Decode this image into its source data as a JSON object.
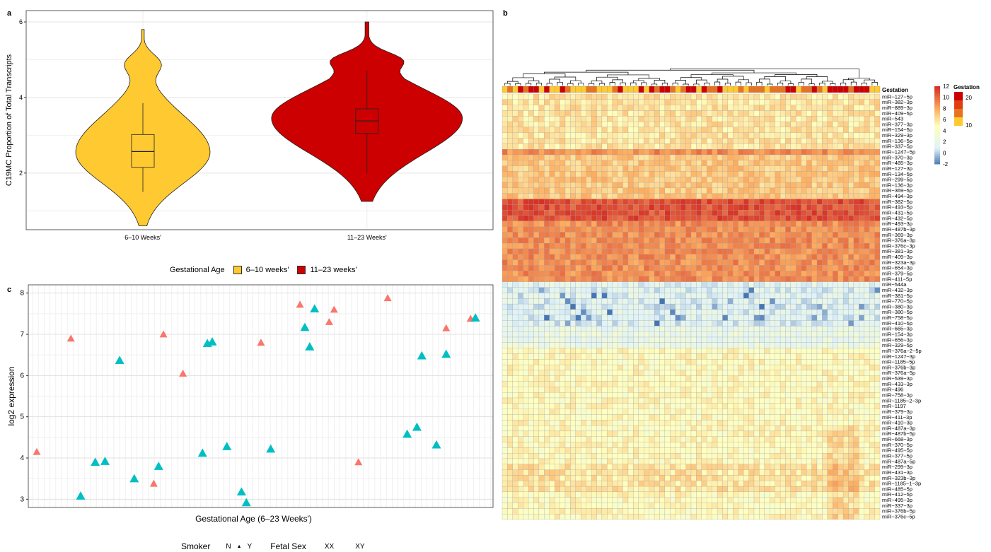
{
  "panels": {
    "a": "a",
    "b": "b",
    "c": "c"
  },
  "colors": {
    "group1": "#FFC931",
    "group2": "#CC0000",
    "smoker_n": "#F8766D",
    "smoker_y": "#00BFC4",
    "heat_low": "#4575B4",
    "heat_mid": "#FFFFBF",
    "heat_high": "#D73027"
  },
  "chart_data": [
    {
      "type": "violin",
      "ylabel": "C19MC Proportion of Total Transcripts",
      "categories": [
        "6–10 Weeks'",
        "11–23 Weeks'"
      ],
      "ylim": [
        0.5,
        6.3
      ],
      "yticks": [
        2,
        4,
        6
      ],
      "groups": [
        {
          "name": "6–10 Weeks'",
          "min": 1.5,
          "q1": 2.15,
          "median": 2.57,
          "q3": 3.02,
          "max": 3.85,
          "range": [
            0.6,
            5.8
          ]
        },
        {
          "name": "11–23 Weeks'",
          "min": 2.0,
          "q1": 3.05,
          "median": 3.38,
          "q3": 3.7,
          "max": 4.7,
          "range": [
            1.25,
            6.0
          ]
        }
      ],
      "legend": {
        "title": "Gestational Age",
        "entries": [
          "6–10 weeks'",
          "11–23 weeks'"
        ]
      }
    },
    {
      "type": "heatmap",
      "annotation_label": "Gestation",
      "scale_ticks": [
        12,
        10,
        8,
        6,
        4,
        2,
        0,
        -2
      ],
      "gestation_ticks": [
        20,
        10
      ],
      "gestation_title": "Gestation",
      "rows": [
        "miR−127−5p",
        "miR−382−3p",
        "miR−889−3p",
        "miR−409−5p",
        "miR−543",
        "miR−377−3p",
        "miR−154−5p",
        "miR−329−3p",
        "miR−136−5p",
        "miR−337−5p",
        "miR−1247−5p",
        "miR−370−3p",
        "miR−485−3p",
        "miR−127−3p",
        "miR−134−5p",
        "miR−299−5p",
        "miR−136−3p",
        "miR−369−5p",
        "miR−494−3p",
        "miR−382−5p",
        "miR−493−5p",
        "miR−431−5p",
        "miR−432−5p",
        "miR−493−3p",
        "miR−487b−3p",
        "miR−369−3p",
        "miR−376a−3p",
        "miR−376c−3p",
        "miR−381−3p",
        "miR−409−3p",
        "miR−323a−3p",
        "miR−654−3p",
        "miR−379−5p",
        "miR−411−5p",
        "miR−544a",
        "miR−432−3p",
        "miR−381−5p",
        "miR−770−5p",
        "miR−380−3p",
        "miR−380−5p",
        "miR−758−5p",
        "miR−410−5p",
        "miR−665−3p",
        "miR−154−3p",
        "miR−656−3p",
        "miR−329−5p",
        "miR−376a−2−5p",
        "miR−1247−3p",
        "miR−1185−5p",
        "miR−376b−3p",
        "miR−376a−5p",
        "miR−539−3p",
        "miR−433−3p",
        "miR−496",
        "miR−758−3p",
        "miR−1185−2−3p",
        "miR−1197",
        "miR−379−3p",
        "miR−411−3p",
        "miR−410−3p",
        "miR−487a−3p",
        "miR−487b−5p",
        "miR−668−3p",
        "miR−370−5p",
        "miR−495−5p",
        "miR−377−5p",
        "miR−487a−5p",
        "miR−299−3p",
        "miR−431−3p",
        "miR−323b−3p",
        "miR−1185−1−3p",
        "miR−485−5p",
        "miR−412−5p",
        "miR−495−3p",
        "miR−337−3p",
        "miR−376b−5p",
        "miR−376c−5p"
      ],
      "row_levels": [
        6,
        6,
        6,
        6,
        6,
        6,
        6,
        6,
        6,
        6,
        9,
        7,
        7,
        7,
        7,
        7,
        7,
        7,
        7,
        11,
        11,
        11,
        11,
        9,
        9,
        9,
        9,
        9,
        9,
        9,
        9,
        9,
        9,
        9,
        1.5,
        1.2,
        1.5,
        1.2,
        1,
        1.3,
        1.2,
        1,
        2,
        2.5,
        2,
        2.5,
        5,
        5,
        5,
        5,
        5,
        5,
        5,
        5,
        5,
        5,
        5,
        5,
        5,
        5,
        5,
        5,
        5,
        5,
        5,
        5,
        5,
        6,
        6,
        6,
        6,
        6,
        5,
        5,
        5,
        5,
        5
      ],
      "n_columns": 72
    },
    {
      "type": "scatter",
      "xlabel": "Gestational Age (6–23 Weeks')",
      "ylabel": "log2 expression",
      "ylim": [
        2.8,
        8.2
      ],
      "yticks": [
        3,
        4,
        5,
        6,
        7,
        8
      ],
      "series": [
        {
          "name": "N",
          "points": [
            [
              1,
              4.15
            ],
            [
              4.5,
              6.9
            ],
            [
              13,
              3.38
            ],
            [
              14,
              7.0
            ],
            [
              16,
              6.05
            ],
            [
              24,
              6.8
            ],
            [
              28,
              7.72
            ],
            [
              31,
              7.3
            ],
            [
              31.5,
              7.6
            ],
            [
              34,
              3.9
            ],
            [
              37,
              7.88
            ],
            [
              43,
              7.15
            ],
            [
              45.5,
              7.38
            ]
          ]
        },
        {
          "name": "Y",
          "points": [
            [
              5.5,
              3.08
            ],
            [
              7,
              3.9
            ],
            [
              8,
              3.92
            ],
            [
              9.5,
              6.37
            ],
            [
              11,
              3.5
            ],
            [
              13.5,
              3.8
            ],
            [
              18,
              4.12
            ],
            [
              18.5,
              6.78
            ],
            [
              19,
              6.82
            ],
            [
              20.5,
              4.28
            ],
            [
              22,
              3.18
            ],
            [
              22.5,
              2.92
            ],
            [
              25,
              4.22
            ],
            [
              28.5,
              7.17
            ],
            [
              29,
              6.7
            ],
            [
              29.5,
              7.62
            ],
            [
              39,
              4.58
            ],
            [
              40,
              4.75
            ],
            [
              40.5,
              6.48
            ],
            [
              42,
              4.32
            ],
            [
              43,
              6.52
            ],
            [
              46,
              7.4
            ]
          ]
        }
      ],
      "legend": {
        "smoker_title": "Smoker",
        "smoker_entries": [
          "N",
          "Y"
        ],
        "sex_title": "Fetal Sex",
        "sex_entries": [
          "XX",
          "XY"
        ]
      }
    }
  ]
}
